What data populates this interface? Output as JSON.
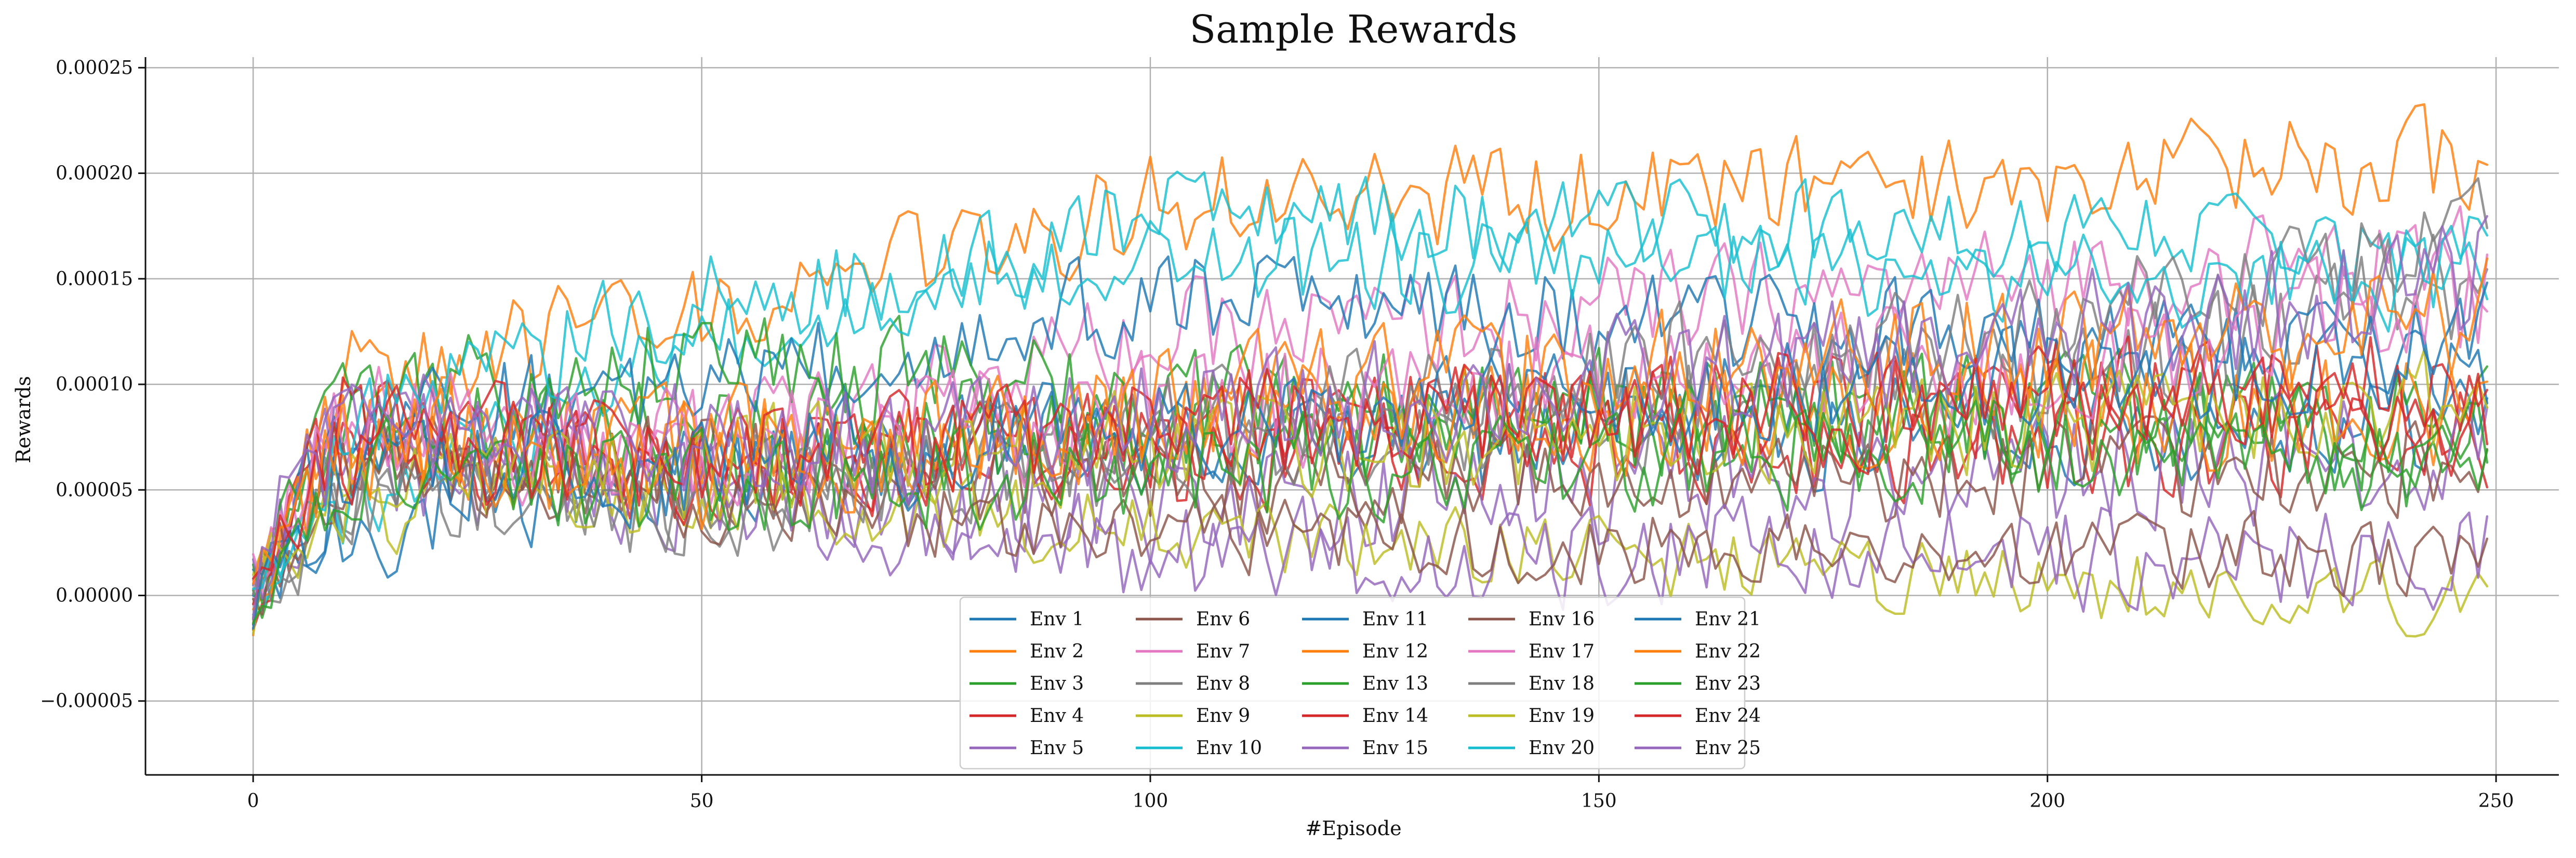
{
  "chart_data": {
    "type": "line",
    "title": "Sample Rewards",
    "xlabel": "#Episode",
    "ylabel": "Rewards",
    "xlim": [
      -12,
      257
    ],
    "ylim": [
      -8.5e-05,
      0.000255
    ],
    "xticks": [
      0,
      50,
      100,
      150,
      200,
      250
    ],
    "xtick_labels": [
      "0",
      "50",
      "100",
      "150",
      "200",
      "250"
    ],
    "yticks": [
      -5e-05,
      0,
      5e-05,
      0.0001,
      0.00015,
      0.0002,
      0.00025
    ],
    "ytick_labels": [
      "−0.00005",
      "0.00000",
      "0.00005",
      "0.00010",
      "0.00015",
      "0.00020",
      "0.00025"
    ],
    "grid": true,
    "legend": {
      "placement": "lower-center",
      "columns": 5
    },
    "episodes": {
      "start": 0,
      "end": 249,
      "step": 1
    },
    "series": [
      {
        "name": "Env 1",
        "color": "#1f77b4",
        "anchors": [
          0,
          3e-05,
          6e-05,
          7e-05,
          8e-05,
          8.5e-05
        ],
        "amplitude": 3e-05
      },
      {
        "name": "Env 2",
        "color": "#ff7f0e",
        "anchors": [
          0,
          0.000105,
          0.00013,
          0.000185,
          0.000195,
          0.00021
        ],
        "amplitude": 2.8e-05
      },
      {
        "name": "Env 3",
        "color": "#2ca02c",
        "anchors": [
          0,
          9e-05,
          7e-05,
          8e-05,
          8.5e-05,
          9e-05
        ],
        "amplitude": 3.2e-05
      },
      {
        "name": "Env 4",
        "color": "#d62728",
        "anchors": [
          0,
          7.5e-05,
          6e-05,
          6.5e-05,
          7e-05,
          7.5e-05
        ],
        "amplitude": 3e-05
      },
      {
        "name": "Env 5",
        "color": "#9467bd",
        "anchors": [
          0,
          7e-05,
          5e-05,
          4e-05,
          6e-05,
          6.5e-05
        ],
        "amplitude": 3.5e-05
      },
      {
        "name": "Env 6",
        "color": "#8c564b",
        "anchors": [
          0,
          6.5e-05,
          6e-05,
          5.5e-05,
          6e-05,
          6e-05
        ],
        "amplitude": 2.8e-05
      },
      {
        "name": "Env 7",
        "color": "#e377c2",
        "anchors": [
          0,
          8.5e-05,
          7.5e-05,
          0.00012,
          0.00015,
          0.00016
        ],
        "amplitude": 3e-05
      },
      {
        "name": "Env 8",
        "color": "#7f7f7f",
        "anchors": [
          0,
          6e-05,
          5e-05,
          7e-05,
          0.0001,
          0.00015
        ],
        "amplitude": 3.2e-05
      },
      {
        "name": "Env 9",
        "color": "#bcbd22",
        "anchors": [
          0,
          5.5e-05,
          5e-05,
          3e-05,
          5e-06,
          0.0
        ],
        "amplitude": 2.2e-05
      },
      {
        "name": "Env 10",
        "color": "#17becf",
        "anchors": [
          0,
          4e-05,
          0.00012,
          0.00018,
          0.00017,
          0.000165
        ],
        "amplitude": 2.5e-05
      },
      {
        "name": "Env 11",
        "color": "#1f77b4",
        "anchors": [
          0,
          8e-05,
          0.0001,
          0.00014,
          0.00012,
          0.00011
        ],
        "amplitude": 2.8e-05
      },
      {
        "name": "Env 12",
        "color": "#ff7f0e",
        "anchors": [
          0,
          8e-05,
          7e-05,
          8e-05,
          9e-05,
          8.5e-05
        ],
        "amplitude": 3.2e-05
      },
      {
        "name": "Env 13",
        "color": "#2ca02c",
        "anchors": [
          0,
          9.5e-05,
          0.00011,
          9e-05,
          8e-05,
          7e-05
        ],
        "amplitude": 3.4e-05
      },
      {
        "name": "Env 14",
        "color": "#d62728",
        "anchors": [
          0,
          8e-05,
          6e-05,
          8e-05,
          9.5e-05,
          0.0001
        ],
        "amplitude": 3.2e-05
      },
      {
        "name": "Env 15",
        "color": "#9467bd",
        "anchors": [
          0,
          9e-05,
          4.5e-05,
          2e-05,
          2e-05,
          2e-05
        ],
        "amplitude": 3e-05
      },
      {
        "name": "Env 16",
        "color": "#8c564b",
        "anchors": [
          0,
          6e-05,
          4.5e-05,
          3e-05,
          2e-05,
          2e-05
        ],
        "amplitude": 2.2e-05
      },
      {
        "name": "Env 17",
        "color": "#e377c2",
        "anchors": [
          0,
          8e-05,
          7e-05,
          9e-05,
          0.00011,
          0.00014
        ],
        "amplitude": 3.5e-05
      },
      {
        "name": "Env 18",
        "color": "#7f7f7f",
        "anchors": [
          0,
          5e-05,
          4e-05,
          8e-05,
          0.00013,
          0.00017
        ],
        "amplitude": 3e-05
      },
      {
        "name": "Env 19",
        "color": "#bcbd22",
        "anchors": [
          0,
          5e-05,
          6e-05,
          7e-05,
          8e-05,
          9e-05
        ],
        "amplitude": 3.2e-05
      },
      {
        "name": "Env 20",
        "color": "#17becf",
        "anchors": [
          0,
          8e-05,
          0.00014,
          0.00016,
          0.00015,
          0.00015
        ],
        "amplitude": 2.8e-05
      },
      {
        "name": "Env 21",
        "color": "#1f77b4",
        "anchors": [
          0,
          6e-05,
          6e-05,
          8e-05,
          0.0001,
          0.00012
        ],
        "amplitude": 3e-05
      },
      {
        "name": "Env 22",
        "color": "#ff7f0e",
        "anchors": [
          0,
          7e-05,
          6e-05,
          9e-05,
          0.00012,
          0.00013
        ],
        "amplitude": 3.5e-05
      },
      {
        "name": "Env 23",
        "color": "#2ca02c",
        "anchors": [
          0,
          6e-05,
          5e-05,
          6e-05,
          7e-05,
          6e-05
        ],
        "amplitude": 3e-05
      },
      {
        "name": "Env 24",
        "color": "#d62728",
        "anchors": [
          0,
          7e-05,
          6.5e-05,
          8e-05,
          9e-05,
          8e-05
        ],
        "amplitude": 3.2e-05
      },
      {
        "name": "Env 25",
        "color": "#9467bd",
        "anchors": [
          0,
          8.5e-05,
          7e-05,
          8e-05,
          0.00012,
          0.00015
        ],
        "amplitude": 3.5e-05
      }
    ]
  }
}
